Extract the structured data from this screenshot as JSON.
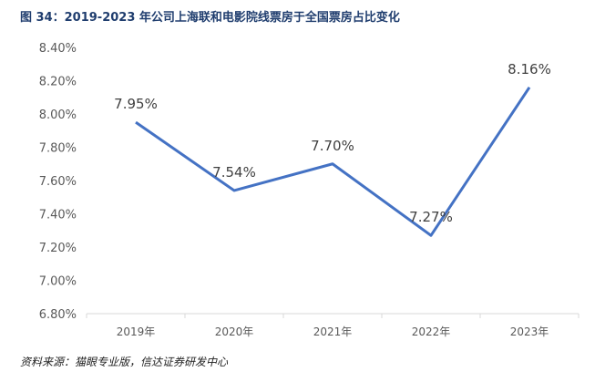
{
  "figure": {
    "title": "图 34：2019-2023 年公司上海联和电影院线票房于全国票房占比变化",
    "source": "资料来源：猫眼专业版，信达证券研发中心"
  },
  "chart_data": {
    "type": "line",
    "categories": [
      "2019年",
      "2020年",
      "2021年",
      "2022年",
      "2023年"
    ],
    "series": [
      {
        "values": [
          7.95,
          7.54,
          7.7,
          7.27,
          8.16
        ]
      }
    ],
    "data_labels": [
      "7.95%",
      "7.54%",
      "7.70%",
      "7.27%",
      "8.16%"
    ],
    "yticks": [
      "6.80%",
      "7.00%",
      "7.20%",
      "7.40%",
      "7.60%",
      "7.80%",
      "8.00%",
      "8.20%",
      "8.40%"
    ],
    "ylim": [
      6.8,
      8.4
    ],
    "ystep": 0.2,
    "grid": false,
    "colors": {
      "line": "#4472c4",
      "axis": "#d9d9d9"
    }
  }
}
